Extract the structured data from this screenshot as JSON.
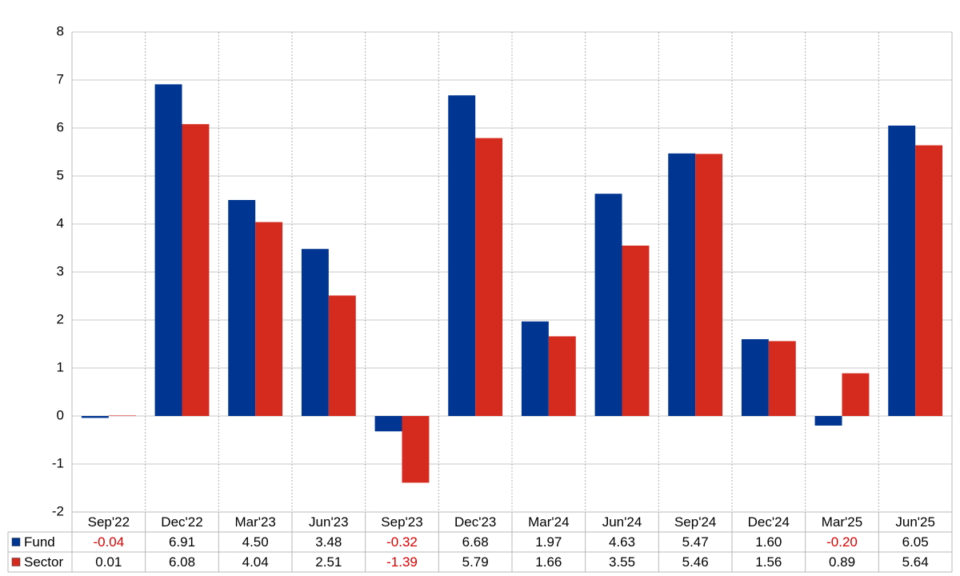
{
  "chart_data": {
    "type": "bar",
    "categories": [
      "Sep'22",
      "Dec'22",
      "Mar'23",
      "Jun'23",
      "Sep'23",
      "Dec'23",
      "Mar'24",
      "Jun'24",
      "Sep'24",
      "Dec'24",
      "Mar'25",
      "Jun'25"
    ],
    "series": [
      {
        "name": "Fund",
        "color": "#003591",
        "values": [
          -0.04,
          6.91,
          4.5,
          3.48,
          -0.32,
          6.68,
          1.97,
          4.63,
          5.47,
          1.6,
          -0.2,
          6.05
        ],
        "value_labels": [
          "-0.04",
          "6.91",
          "4.50",
          "3.48",
          "-0.32",
          "6.68",
          "1.97",
          "4.63",
          "5.47",
          "1.60",
          "-0.20",
          "6.05"
        ]
      },
      {
        "name": "Sector",
        "color": "#d52b1e",
        "values": [
          0.01,
          6.08,
          4.04,
          2.51,
          -1.39,
          5.79,
          1.66,
          3.55,
          5.46,
          1.56,
          0.89,
          5.64
        ],
        "value_labels": [
          "0.01",
          "6.08",
          "4.04",
          "2.51",
          "-1.39",
          "5.79",
          "1.66",
          "3.55",
          "5.46",
          "1.56",
          "0.89",
          "5.64"
        ]
      }
    ],
    "ylim": [
      -2,
      8
    ],
    "yticks": [
      -2,
      -1,
      0,
      1,
      2,
      3,
      4,
      5,
      6,
      7,
      8
    ],
    "grid": true
  }
}
